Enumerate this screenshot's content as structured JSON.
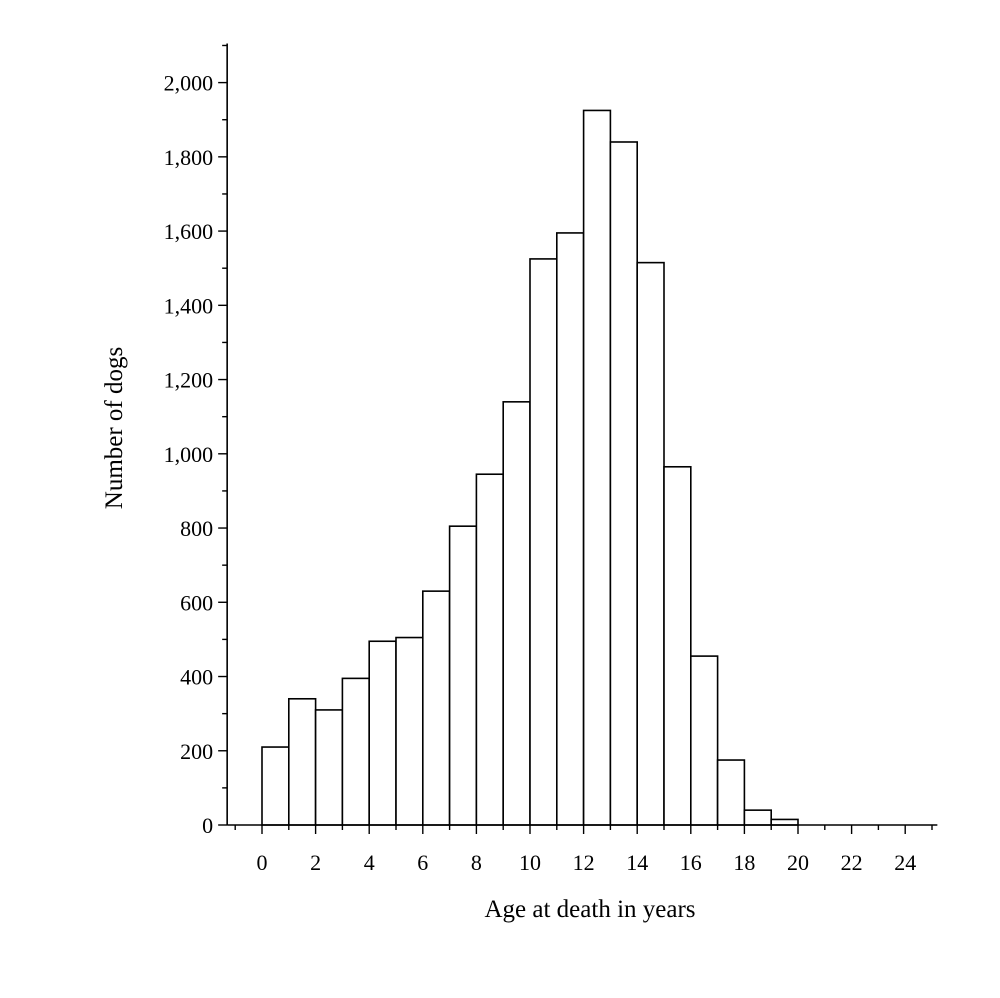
{
  "chart_data": {
    "type": "bar",
    "title": "",
    "xlabel": "Age at death in years",
    "ylabel": "Number of dogs",
    "x_ticks": [
      "0",
      "2",
      "4",
      "6",
      "8",
      "10",
      "12",
      "14",
      "16",
      "18",
      "20",
      "22",
      "24"
    ],
    "y_ticks": [
      "0",
      "200",
      "400",
      "600",
      "800",
      "1,000",
      "1,200",
      "1,400",
      "1,600",
      "1,800",
      "2,000"
    ],
    "xlim": [
      -1.3,
      25.2
    ],
    "ylim": [
      0,
      2100
    ],
    "grid": false,
    "bins": [
      {
        "start": 0,
        "end": 1,
        "value": 210
      },
      {
        "start": 1,
        "end": 2,
        "value": 340
      },
      {
        "start": 2,
        "end": 3,
        "value": 310
      },
      {
        "start": 3,
        "end": 4,
        "value": 395
      },
      {
        "start": 4,
        "end": 5,
        "value": 495
      },
      {
        "start": 5,
        "end": 6,
        "value": 505
      },
      {
        "start": 6,
        "end": 7,
        "value": 630
      },
      {
        "start": 7,
        "end": 8,
        "value": 805
      },
      {
        "start": 8,
        "end": 9,
        "value": 945
      },
      {
        "start": 9,
        "end": 10,
        "value": 1140
      },
      {
        "start": 10,
        "end": 11,
        "value": 1525
      },
      {
        "start": 11,
        "end": 12,
        "value": 1595
      },
      {
        "start": 12,
        "end": 13,
        "value": 1925
      },
      {
        "start": 13,
        "end": 14,
        "value": 1840
      },
      {
        "start": 14,
        "end": 15,
        "value": 1515
      },
      {
        "start": 15,
        "end": 16,
        "value": 965
      },
      {
        "start": 16,
        "end": 17,
        "value": 455
      },
      {
        "start": 17,
        "end": 18,
        "value": 175
      },
      {
        "start": 18,
        "end": 19,
        "value": 40
      },
      {
        "start": 19,
        "end": 20,
        "value": 15
      }
    ]
  }
}
